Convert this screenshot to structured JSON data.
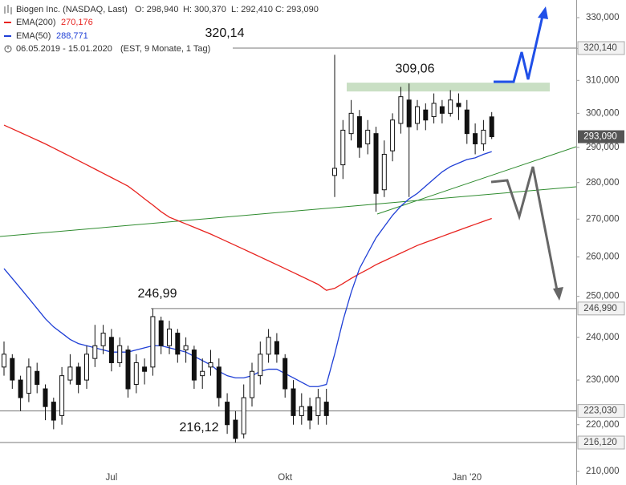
{
  "chart_data": {
    "type": "candlestick",
    "header": {
      "title": "Biogen Inc. (NASDAQ, Last)",
      "open": "O: 298,940",
      "high": "H: 300,370",
      "low": "L: 292,410",
      "close": "C: 293,090",
      "range": "06.05.2019 - 15.01.2020",
      "info": "(EST, 9 Monate, 1 Tag)"
    },
    "categories": [
      null,
      null,
      null,
      null,
      null,
      null,
      null,
      null,
      null,
      null,
      null,
      null,
      null,
      "Jul",
      null,
      null,
      null,
      null,
      null,
      null,
      null,
      null,
      null,
      null,
      null,
      null,
      null,
      null,
      null,
      null,
      null,
      null,
      null,
      null,
      "Okt",
      null,
      null,
      null,
      null,
      null,
      null,
      null,
      null,
      null,
      null,
      null,
      null,
      null,
      null,
      null,
      null,
      null,
      null,
      null,
      null,
      null,
      "Jan '20",
      null,
      null,
      null
    ],
    "open": [
      233,
      235,
      230,
      227,
      232,
      228,
      225,
      222,
      230,
      233,
      230,
      235,
      238,
      240,
      234,
      237,
      229,
      233,
      233,
      244,
      238,
      241,
      237,
      237,
      231,
      233,
      233,
      225,
      221,
      218,
      226,
      231,
      236,
      239,
      235,
      228,
      222,
      224,
      222,
      225,
      282,
      285,
      294,
      299,
      291,
      294,
      278,
      289,
      297,
      304,
      297,
      301,
      299,
      302,
      300,
      303,
      301,
      294,
      291,
      298.94
    ],
    "high": [
      239,
      236,
      231,
      235,
      234,
      229,
      226,
      233,
      236,
      234,
      238,
      243,
      243,
      242,
      240,
      238,
      236,
      235,
      246.99,
      245,
      244,
      242,
      240,
      238,
      235,
      237,
      235,
      227,
      223,
      229,
      234,
      239,
      242,
      241,
      236,
      230,
      227,
      226,
      228,
      228,
      318,
      298,
      304,
      301,
      298,
      296,
      292,
      300,
      308,
      309.06,
      304,
      303,
      306,
      304,
      307,
      306,
      304,
      297,
      298,
      300.37
    ],
    "low": [
      231,
      228,
      223,
      225,
      227,
      221,
      219,
      220,
      229,
      227,
      228,
      233,
      236,
      232,
      233,
      226,
      227,
      229,
      231,
      236,
      236,
      234,
      234,
      228,
      228,
      231,
      224,
      218,
      216.12,
      217,
      224,
      229,
      234,
      234,
      226,
      220,
      220,
      219,
      220,
      220,
      276,
      281,
      292,
      287,
      288,
      272,
      276,
      286,
      294,
      276,
      295,
      295,
      297,
      297,
      299,
      298,
      291,
      288,
      289,
      292.41
    ],
    "close": [
      236,
      230,
      226,
      233,
      229,
      224,
      221,
      231,
      233,
      229,
      236,
      238,
      241,
      234,
      238,
      228,
      234,
      232,
      245,
      238,
      242,
      236,
      238,
      230,
      232,
      234,
      226,
      220,
      217,
      226,
      232,
      236,
      240,
      236,
      228,
      222,
      224,
      221,
      226,
      222,
      284,
      295,
      300,
      290,
      295,
      277,
      288,
      298,
      305,
      296,
      302,
      298,
      303,
      300,
      304,
      302,
      294,
      291,
      295,
      293.09
    ],
    "series": [
      {
        "name": "EMA(200)",
        "color": "#e8231f",
        "legend_value": "270,176",
        "values": [
          296.5,
          295.4,
          294.3,
          293.2,
          292.1,
          291,
          289.8,
          288.6,
          287.4,
          286.2,
          285,
          283.8,
          282.6,
          281.4,
          280.2,
          279,
          277.3,
          275.5,
          273.8,
          272,
          270.5,
          269.6,
          268.7,
          267.8,
          266.9,
          266,
          265,
          264,
          263,
          262,
          261,
          260,
          259,
          258,
          257,
          256,
          255,
          254,
          253,
          251.5,
          252,
          253.2,
          254.5,
          255.7,
          256.8,
          258,
          259,
          260,
          261,
          262,
          263,
          263.8,
          264.6,
          265.4,
          266.2,
          267,
          267.8,
          268.6,
          269.4,
          270.18
        ]
      },
      {
        "name": "EMA(50)",
        "color": "#1f3fd6",
        "legend_value": "288,771",
        "values": [
          257,
          254.5,
          252,
          249.5,
          247,
          244.5,
          242.5,
          241,
          239.5,
          238.5,
          238,
          237.5,
          237,
          236.5,
          236.5,
          236.5,
          237,
          237.5,
          238,
          238,
          237.5,
          237,
          236.5,
          235.5,
          234.5,
          233.5,
          232,
          231,
          230.5,
          230.5,
          231,
          232,
          232.5,
          232.5,
          231.5,
          230.5,
          229.5,
          228.5,
          228.5,
          229,
          236,
          244,
          251,
          257,
          261,
          265,
          268,
          271,
          273.5,
          275.5,
          277,
          279,
          281,
          283,
          284.5,
          285.5,
          286.5,
          287,
          288,
          288.77
        ]
      }
    ],
    "log_scale": true,
    "ylim": [
      210,
      330
    ],
    "yticks": [
      {
        "value": 210,
        "label": "210,000"
      },
      {
        "value": 220,
        "label": "220,000"
      },
      {
        "value": 230,
        "label": "230,000"
      },
      {
        "value": 240,
        "label": "240,000"
      },
      {
        "value": 250,
        "label": "250,000"
      },
      {
        "value": 260,
        "label": "260,000"
      },
      {
        "value": 270,
        "label": "270,000"
      },
      {
        "value": 280,
        "label": "280,000"
      },
      {
        "value": 290,
        "label": "290,000"
      },
      {
        "value": 300,
        "label": "300,000"
      },
      {
        "value": 310,
        "label": "310,000"
      },
      {
        "value": 320,
        "label": "320,000"
      },
      {
        "value": 330,
        "label": "330,000"
      }
    ],
    "levels": [
      {
        "value": 320.14,
        "label": "320,140",
        "annotation": "320,14"
      },
      {
        "value": 246.99,
        "label": "246,990",
        "annotation": "246,99"
      },
      {
        "value": 223.03,
        "label": "223,030"
      },
      {
        "value": 216.12,
        "label": "216,120",
        "annotation": "216,12"
      }
    ],
    "zone": {
      "value": 309.06,
      "label": "309,06",
      "color": "#c9dfc4"
    },
    "last_price": {
      "value": 293.09,
      "label": "293,090"
    }
  }
}
